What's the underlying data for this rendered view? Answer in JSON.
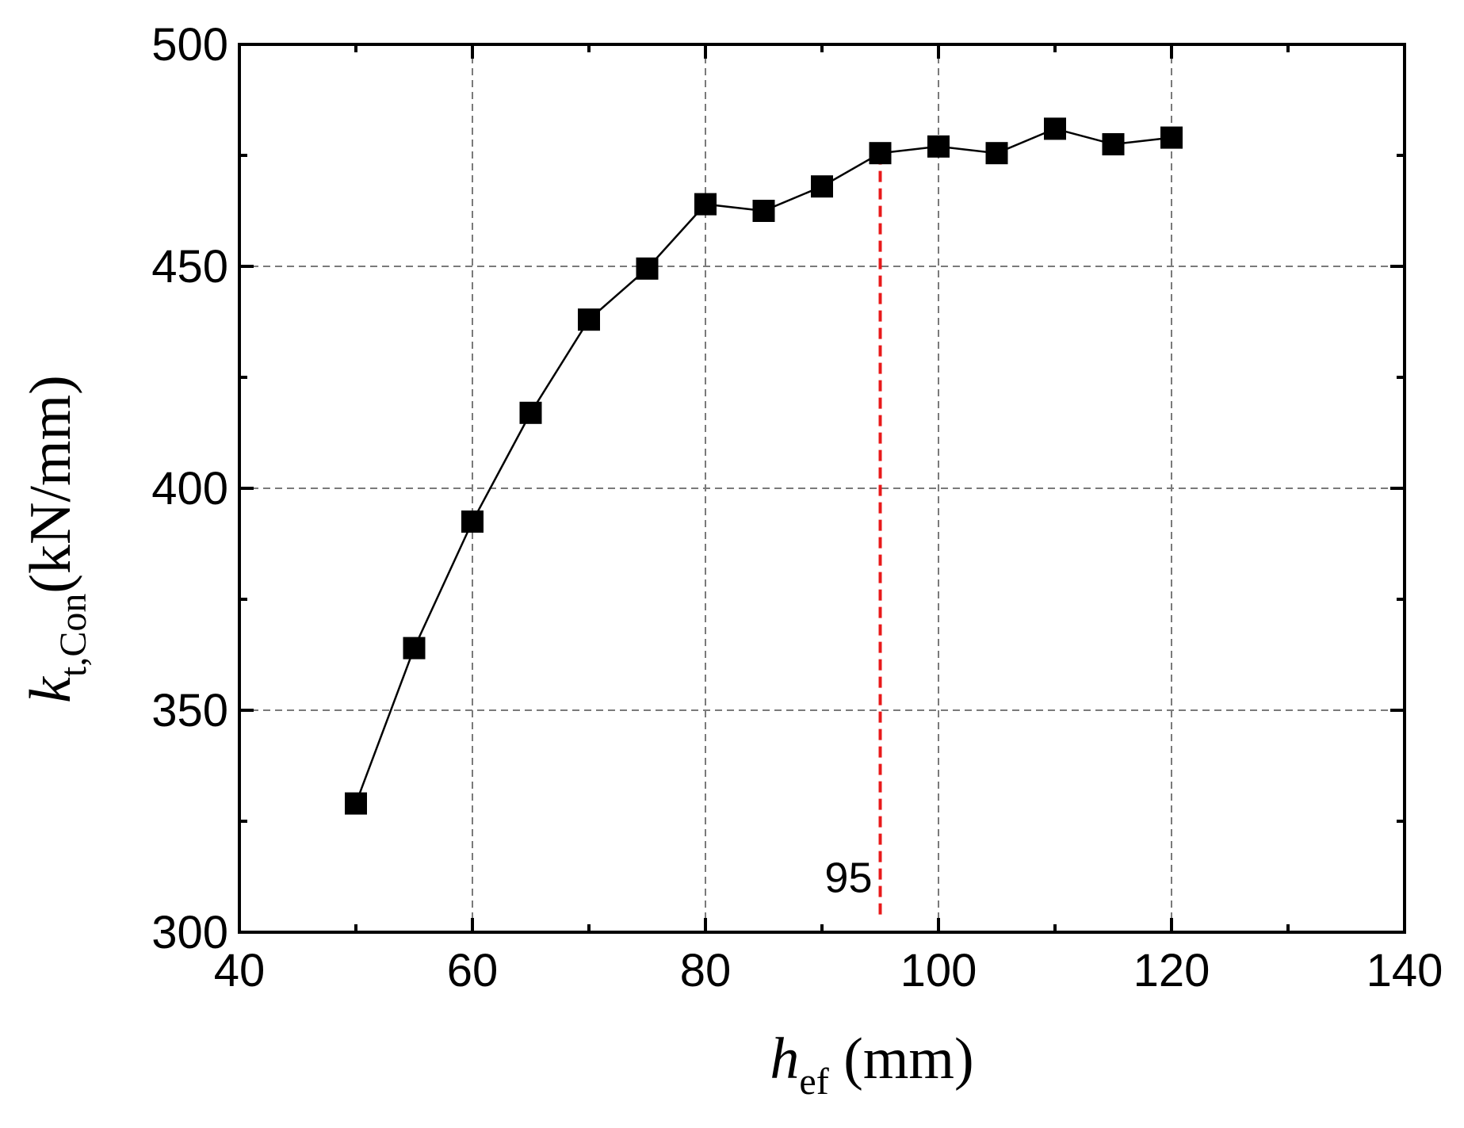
{
  "chart_data": {
    "type": "line",
    "x": [
      50,
      55,
      60,
      65,
      70,
      75,
      80,
      85,
      90,
      95,
      100,
      105,
      110,
      115,
      120
    ],
    "series": [
      {
        "values": [
          329,
          364,
          392.5,
          417,
          438,
          449.5,
          464,
          462.5,
          468,
          475.5,
          477,
          475.5,
          481,
          477.5,
          479
        ]
      }
    ],
    "xlabel": {
      "main": "h",
      "sub": "ef",
      "unit": " (mm)"
    },
    "ylabel": {
      "main": "k",
      "sub": "t,Con",
      "unit": "(kN/mm)"
    },
    "xlim": [
      40,
      140
    ],
    "ylim": [
      300,
      500
    ],
    "xticks": [
      40,
      60,
      80,
      100,
      120,
      140
    ],
    "yticks": [
      300,
      350,
      400,
      450,
      500
    ],
    "grid": true,
    "marker": "square",
    "line_color": "#000000",
    "marker_color": "#000000",
    "annotation": {
      "x": 95,
      "y_start": 304,
      "y_end": 475.5,
      "label": "95",
      "color": "#e8191a",
      "style": "dashed"
    }
  }
}
